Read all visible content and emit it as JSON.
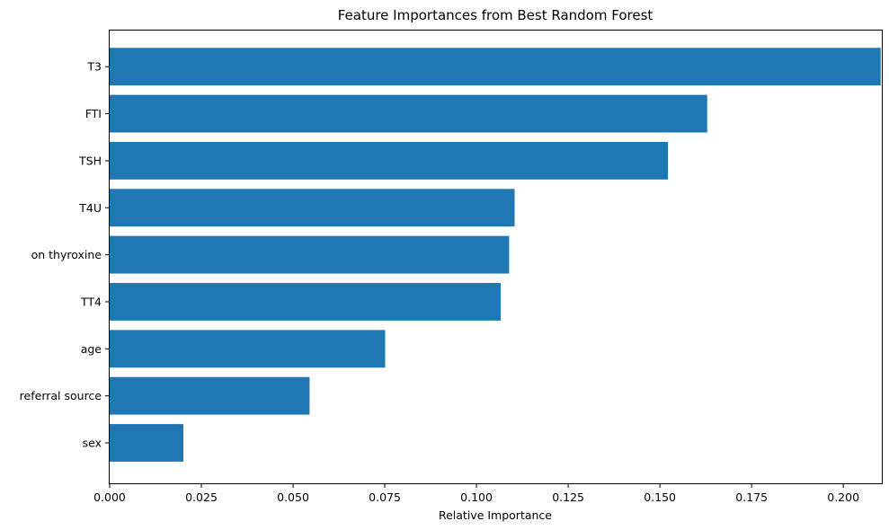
{
  "chart_data": {
    "type": "bar",
    "orientation": "horizontal",
    "title": "Feature Importances from Best Random Forest",
    "xlabel": "Relative Importance",
    "ylabel": "",
    "categories": [
      "sex",
      "referral source",
      "age",
      "TT4",
      "on thyroxine",
      "T4U",
      "TSH",
      "FTI",
      "T3"
    ],
    "values": [
      0.0201,
      0.0545,
      0.0751,
      0.1066,
      0.1089,
      0.1104,
      0.1522,
      0.1629,
      0.2102
    ],
    "xlim": [
      0,
      0.2105
    ],
    "xticks": [
      0.0,
      0.025,
      0.05,
      0.075,
      0.1,
      0.125,
      0.15,
      0.175,
      0.2
    ],
    "xtick_labels": [
      "0.000",
      "0.025",
      "0.050",
      "0.075",
      "0.100",
      "0.125",
      "0.150",
      "0.175",
      "0.200"
    ],
    "bar_color": "#1f77b4",
    "grid": false,
    "legend": null
  }
}
